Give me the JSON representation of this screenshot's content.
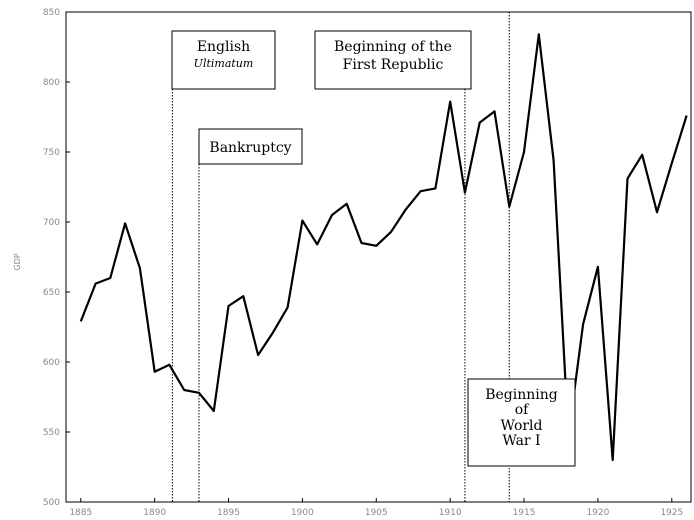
{
  "chart_data": {
    "type": "line",
    "xlabel": "",
    "ylabel": "GDP",
    "xlim": [
      1884,
      1926.3
    ],
    "ylim": [
      500,
      850
    ],
    "xticks": [
      1885,
      1890,
      1895,
      1900,
      1905,
      1910,
      1915,
      1920,
      1925
    ],
    "yticks": [
      500,
      550,
      600,
      650,
      700,
      750,
      800,
      850
    ],
    "grid": false,
    "series": [
      {
        "color": "#000000",
        "x": [
          1885,
          1886,
          1887,
          1888,
          1889,
          1890,
          1891,
          1892,
          1893,
          1894,
          1895,
          1896,
          1897,
          1898,
          1899,
          1900,
          1901,
          1902,
          1903,
          1904,
          1905,
          1906,
          1907,
          1908,
          1909,
          1910,
          1911,
          1912,
          1913,
          1914,
          1915,
          1916,
          1917,
          1918,
          1919,
          1920,
          1921,
          1922,
          1923,
          1924,
          1925,
          1926
        ],
        "y": [
          629,
          656,
          660,
          699,
          667,
          593,
          598,
          580,
          578,
          565,
          640,
          647,
          605,
          621,
          639,
          701,
          684,
          705,
          713,
          685,
          683,
          693,
          709,
          722,
          724,
          786,
          721,
          771,
          779,
          711,
          750,
          834,
          744,
          547,
          627,
          668,
          530,
          731,
          748,
          707,
          742,
          776
        ]
      }
    ],
    "events": [
      {
        "x": 1891.2,
        "lines": [
          "English",
          "Ultimatum"
        ]
      },
      {
        "x": 1893,
        "lines": [
          "Bankruptcy"
        ]
      },
      {
        "x": 1911,
        "lines": [
          "Beginning of the",
          "First Republic"
        ]
      },
      {
        "x": 1914,
        "lines": [
          "Beginning",
          "of",
          "World",
          "War I"
        ]
      }
    ]
  }
}
